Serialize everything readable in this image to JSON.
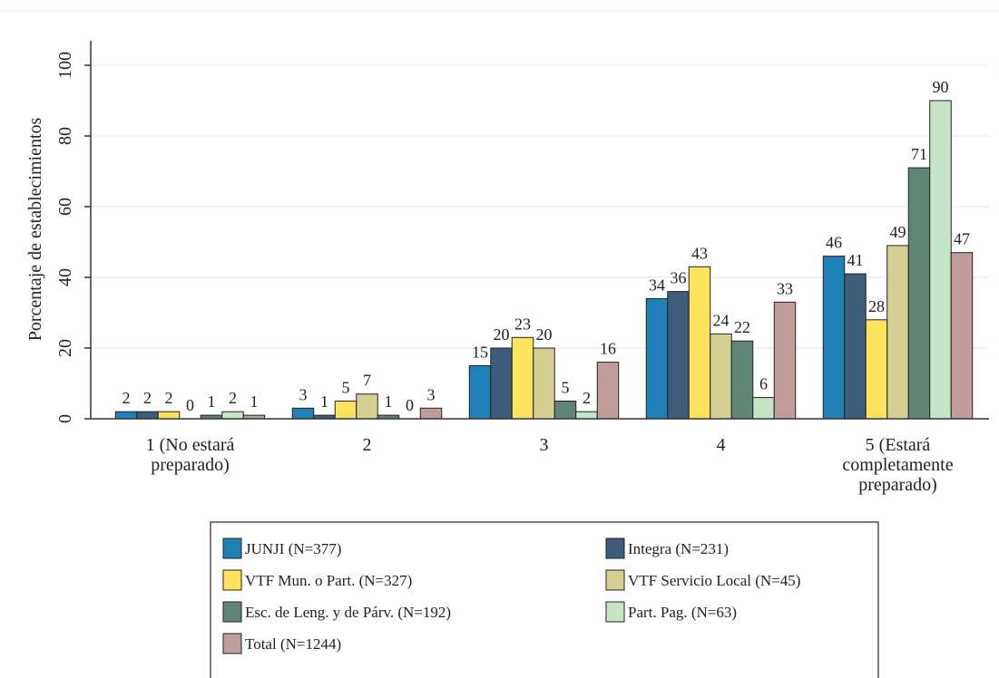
{
  "chart_data": {
    "type": "bar",
    "y_label": "Porcentaje de establecimientos",
    "categories": [
      "1 (No estará preparado)",
      "2",
      "3",
      "4",
      "5 (Estará completamente preparado)"
    ],
    "series": [
      {
        "name": "JUNJI (N=377)",
        "color": "#1f80b8",
        "values": [
          2,
          3,
          15,
          34,
          46
        ]
      },
      {
        "name": "Integra (N=231)",
        "color": "#3e5d7c",
        "values": [
          2,
          1,
          20,
          36,
          41
        ]
      },
      {
        "name": "VTF Mun. o Part. (N=327)",
        "color": "#fde25e",
        "values": [
          2,
          5,
          23,
          43,
          28
        ]
      },
      {
        "name": "VTF Servicio Local (N=45)",
        "color": "#d6cf94",
        "values": [
          0,
          7,
          20,
          24,
          49
        ]
      },
      {
        "name": "Esc. de Leng. y de Párv. (N=192)",
        "color": "#5f8575",
        "values": [
          1,
          1,
          5,
          22,
          71
        ]
      },
      {
        "name": "Part. Pag. (N=63)",
        "color": "#c6e4c6",
        "values": [
          2,
          0,
          2,
          6,
          90
        ]
      },
      {
        "name": "Total (N=1244)",
        "color": "#c09c9a",
        "values": [
          1,
          3,
          16,
          33,
          47
        ]
      }
    ],
    "ylim": [
      0,
      100
    ],
    "yticks": [
      0,
      20,
      40,
      60,
      80,
      100
    ],
    "grid": true
  }
}
